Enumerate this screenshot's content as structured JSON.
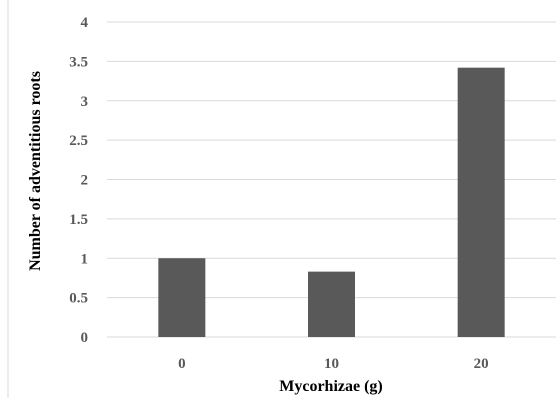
{
  "chart_data": {
    "type": "bar",
    "title": "",
    "xlabel": "Mycorhizae (g)",
    "ylabel": "Number of adventitious roots",
    "categories": [
      "0",
      "10",
      "20"
    ],
    "values": [
      1.0,
      0.83,
      3.42
    ],
    "ylim": [
      0,
      4
    ],
    "yticks": [
      "0",
      "0.5",
      "1",
      "1.5",
      "2",
      "2.5",
      "3",
      "3.5",
      "4"
    ],
    "grid": true,
    "legend": "none",
    "bar_color": "#595959"
  }
}
